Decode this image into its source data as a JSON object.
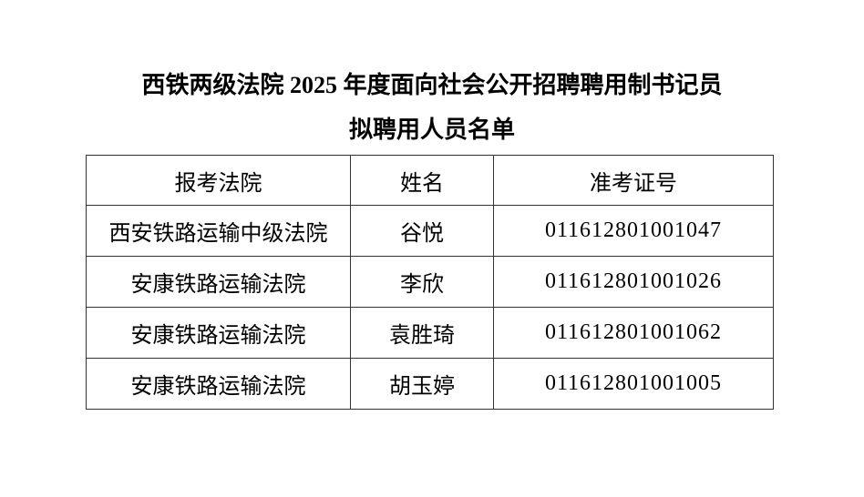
{
  "title": {
    "line1": "西铁两级法院 2025 年度面向社会公开招聘聘用制书记员",
    "line2": "拟聘用人员名单"
  },
  "table": {
    "headers": [
      "报考法院",
      "姓名",
      "准考证号"
    ],
    "rows": [
      [
        "西安铁路运输中级法院",
        "谷悦",
        "011612801001047"
      ],
      [
        "安康铁路运输法院",
        "李欣",
        "011612801001026"
      ],
      [
        "安康铁路运输法院",
        "袁胜琦",
        "011612801001062"
      ],
      [
        "安康铁路运输法院",
        "胡玉婷",
        "011612801001005"
      ]
    ]
  }
}
